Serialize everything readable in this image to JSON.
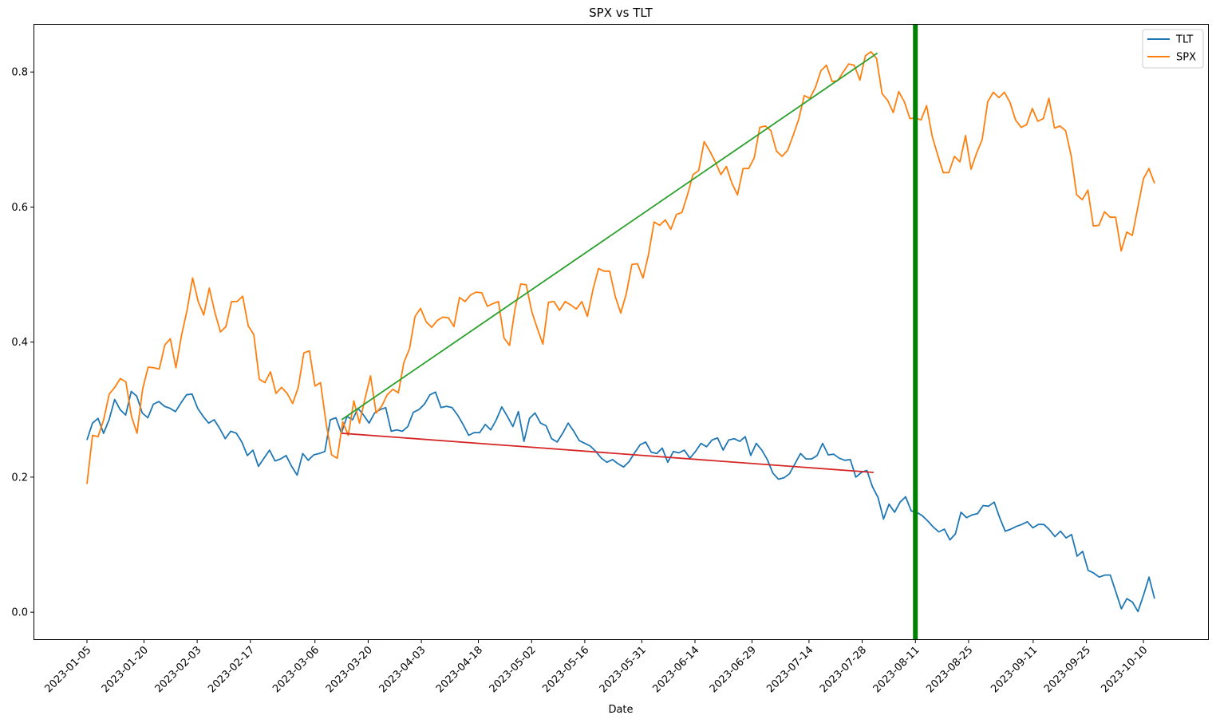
{
  "chart_data": {
    "type": "line",
    "title": "SPX vs TLT",
    "xlabel": "Date",
    "ylabel": "",
    "xlim": [
      "2023-01-05",
      "2023-10-12"
    ],
    "ylim": [
      -0.04,
      0.87
    ],
    "y_ticks": [
      0.0,
      0.2,
      0.4,
      0.6,
      0.8
    ],
    "y_tick_labels": [
      "0.0",
      "0.2",
      "0.4",
      "0.6",
      "0.8"
    ],
    "x_ticks": [
      "2023-01-05",
      "2023-01-20",
      "2023-02-03",
      "2023-02-17",
      "2023-03-06",
      "2023-03-20",
      "2023-04-03",
      "2023-04-18",
      "2023-05-02",
      "2023-05-16",
      "2023-05-31",
      "2023-06-14",
      "2023-06-29",
      "2023-07-14",
      "2023-07-28",
      "2023-08-11",
      "2023-08-25",
      "2023-09-11",
      "2023-09-25",
      "2023-10-10"
    ],
    "legend_position": "top-right",
    "grid": false,
    "series": [
      {
        "name": "TLT",
        "color": "#1f77b4",
        "values": [
          0.255,
          0.28,
          0.287,
          0.265,
          0.285,
          0.315,
          0.3,
          0.292,
          0.327,
          0.32,
          0.295,
          0.288,
          0.308,
          0.312,
          0.305,
          0.302,
          0.297,
          0.31,
          0.322,
          0.323,
          0.302,
          0.29,
          0.28,
          0.285,
          0.272,
          0.257,
          0.268,
          0.265,
          0.252,
          0.232,
          0.24,
          0.216,
          0.228,
          0.24,
          0.224,
          0.227,
          0.232,
          0.216,
          0.203,
          0.235,
          0.225,
          0.233,
          0.235,
          0.238,
          0.285,
          0.288,
          0.265,
          0.29,
          0.285,
          0.302,
          0.292,
          0.28,
          0.295,
          0.3,
          0.303,
          0.268,
          0.27,
          0.268,
          0.275,
          0.296,
          0.3,
          0.308,
          0.322,
          0.326,
          0.303,
          0.305,
          0.303,
          0.292,
          0.278,
          0.262,
          0.266,
          0.266,
          0.278,
          0.27,
          0.285,
          0.304,
          0.29,
          0.275,
          0.297,
          0.253,
          0.287,
          0.295,
          0.28,
          0.276,
          0.257,
          0.252,
          0.265,
          0.28,
          0.268,
          0.254,
          0.25,
          0.246,
          0.238,
          0.228,
          0.222,
          0.226,
          0.22,
          0.215,
          0.223,
          0.236,
          0.248,
          0.252,
          0.237,
          0.235,
          0.243,
          0.222,
          0.238,
          0.236,
          0.24,
          0.228,
          0.238,
          0.25,
          0.245,
          0.255,
          0.258,
          0.24,
          0.255,
          0.257,
          0.253,
          0.26,
          0.232,
          0.25,
          0.24,
          0.226,
          0.206,
          0.197,
          0.199,
          0.205,
          0.22,
          0.235,
          0.227,
          0.227,
          0.232,
          0.25,
          0.233,
          0.234,
          0.228,
          0.225,
          0.226,
          0.2,
          0.207,
          0.21,
          0.186,
          0.17,
          0.138,
          0.16,
          0.148,
          0.163,
          0.171,
          0.15,
          0.148,
          0.143,
          0.135,
          0.126,
          0.119,
          0.123,
          0.107,
          0.116,
          0.148,
          0.14,
          0.144,
          0.146,
          0.158,
          0.157,
          0.163,
          0.14,
          0.12,
          0.123,
          0.127,
          0.13,
          0.134,
          0.125,
          0.13,
          0.13,
          0.122,
          0.112,
          0.12,
          0.11,
          0.115,
          0.083,
          0.09,
          0.062,
          0.058,
          0.052,
          0.055,
          0.055,
          0.03,
          0.005,
          0.02,
          0.015,
          0.001,
          0.025,
          0.052,
          0.02
        ]
      },
      {
        "name": "SPX",
        "color": "#ff7f0e",
        "values": [
          0.19,
          0.262,
          0.26,
          0.285,
          0.323,
          0.333,
          0.346,
          0.341,
          0.29,
          0.265,
          0.33,
          0.363,
          0.362,
          0.36,
          0.396,
          0.405,
          0.362,
          0.41,
          0.447,
          0.495,
          0.46,
          0.44,
          0.48,
          0.444,
          0.415,
          0.423,
          0.46,
          0.46,
          0.468,
          0.424,
          0.411,
          0.345,
          0.34,
          0.356,
          0.324,
          0.333,
          0.324,
          0.309,
          0.333,
          0.384,
          0.387,
          0.335,
          0.34,
          0.28,
          0.233,
          0.228,
          0.282,
          0.262,
          0.313,
          0.28,
          0.316,
          0.35,
          0.295,
          0.305,
          0.322,
          0.33,
          0.325,
          0.37,
          0.39,
          0.438,
          0.45,
          0.43,
          0.422,
          0.432,
          0.437,
          0.436,
          0.423,
          0.466,
          0.46,
          0.47,
          0.474,
          0.473,
          0.453,
          0.457,
          0.46,
          0.406,
          0.395,
          0.45,
          0.486,
          0.485,
          0.445,
          0.42,
          0.397,
          0.459,
          0.46,
          0.447,
          0.46,
          0.455,
          0.449,
          0.46,
          0.438,
          0.478,
          0.509,
          0.505,
          0.505,
          0.468,
          0.443,
          0.472,
          0.515,
          0.516,
          0.495,
          0.53,
          0.578,
          0.573,
          0.581,
          0.567,
          0.589,
          0.592,
          0.618,
          0.648,
          0.654,
          0.697,
          0.683,
          0.667,
          0.648,
          0.66,
          0.635,
          0.618,
          0.657,
          0.657,
          0.673,
          0.718,
          0.72,
          0.713,
          0.683,
          0.675,
          0.684,
          0.706,
          0.73,
          0.765,
          0.761,
          0.777,
          0.802,
          0.81,
          0.786,
          0.787,
          0.8,
          0.812,
          0.81,
          0.788,
          0.824,
          0.83,
          0.82,
          0.768,
          0.758,
          0.74,
          0.771,
          0.756,
          0.731,
          0.732,
          0.729,
          0.75,
          0.705,
          0.677,
          0.651,
          0.651,
          0.675,
          0.667,
          0.706,
          0.656,
          0.68,
          0.7,
          0.756,
          0.77,
          0.762,
          0.77,
          0.755,
          0.729,
          0.718,
          0.722,
          0.746,
          0.727,
          0.731,
          0.761,
          0.717,
          0.72,
          0.713,
          0.676,
          0.618,
          0.611,
          0.625,
          0.572,
          0.573,
          0.593,
          0.585,
          0.585,
          0.535,
          0.563,
          0.558,
          0.6,
          0.642,
          0.657,
          0.635
        ]
      }
    ],
    "trend_lines": [
      {
        "x": [
          "2023-03-13",
          "2023-08-01"
        ],
        "y": [
          0.285,
          0.828
        ],
        "color": "#2ca02c"
      },
      {
        "x": [
          "2023-03-13",
          "2023-07-31"
        ],
        "y": [
          0.265,
          0.207
        ],
        "color": "#d62728"
      }
    ],
    "vertical_line": {
      "x": "2023-08-11",
      "color": "#008000"
    }
  }
}
